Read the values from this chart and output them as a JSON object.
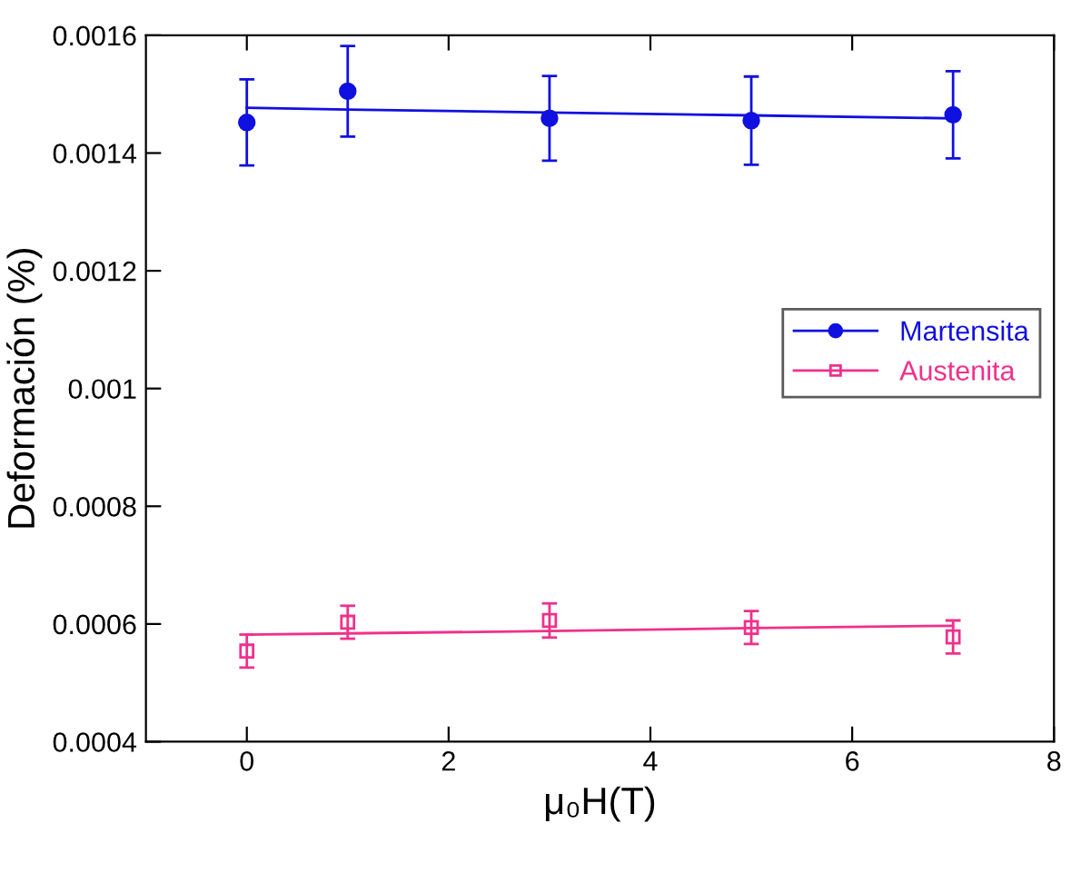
{
  "chart_data": {
    "type": "scatter",
    "xlabel": "μ₀H(T)",
    "ylabel": "Deformación (%)",
    "x": [
      0,
      1,
      3,
      5,
      7
    ],
    "xlim": [
      -1,
      8
    ],
    "xticks": [
      0,
      2,
      4,
      6,
      8
    ],
    "ylim": [
      0.0004,
      0.0016
    ],
    "yticks": [
      0.0004,
      0.0006,
      0.0008,
      0.001,
      0.0012,
      0.0014,
      0.0016
    ],
    "grid": false,
    "legend": "right",
    "series": [
      {
        "name": "Martensita",
        "color": "#1010e0",
        "marker": "circle",
        "values": [
          0.001452,
          0.001505,
          0.001459,
          0.001455,
          0.001465
        ],
        "errors": [
          7.3e-05,
          7.7e-05,
          7.2e-05,
          7.5e-05,
          7.4e-05
        ]
      },
      {
        "name": "Austenita",
        "color": "#f0308c",
        "marker": "square",
        "values": [
          0.000554,
          0.000603,
          0.000606,
          0.000594,
          0.000578
        ],
        "errors": [
          2.8e-05,
          2.8e-05,
          2.9e-05,
          2.8e-05,
          2.8e-05
        ]
      },
      {
        "type": "line",
        "color": "#1010e0",
        "values": [
          0.001477,
          0.001474,
          0.001469,
          0.001464,
          0.001459
        ]
      },
      {
        "type": "line",
        "color": "#f0308c",
        "values": [
          0.000582,
          0.000584,
          0.000588,
          0.000593,
          0.000597
        ]
      }
    ]
  }
}
